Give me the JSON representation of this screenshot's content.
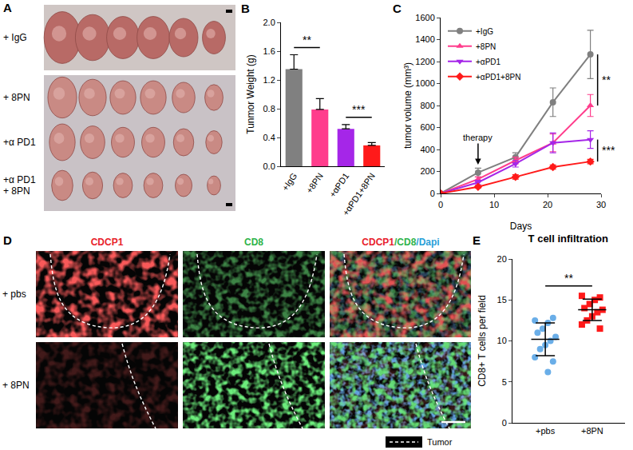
{
  "panels": {
    "A": {
      "label": "A",
      "rows": [
        {
          "label_lines": [
            "+ IgG"
          ]
        },
        {
          "label_lines": [
            "+ 8PN"
          ]
        },
        {
          "label_lines": [
            "+α PD1"
          ]
        },
        {
          "label_lines": [
            "+α PD1",
            "+ 8PN"
          ]
        }
      ]
    },
    "D": {
      "label": "D",
      "columns": [
        {
          "parts": [
            {
              "text": "CDCP1",
              "color": "#e8212b"
            }
          ]
        },
        {
          "parts": [
            {
              "text": "CD8",
              "color": "#2fb34a"
            }
          ]
        },
        {
          "parts": [
            {
              "text": "CDCP1",
              "color": "#e8212b"
            },
            {
              "text": "/CD8",
              "color": "#2fb34a"
            },
            {
              "text": "/Dapi",
              "color": "#2a9fd8"
            }
          ]
        }
      ],
      "rows": [
        {
          "label": "+ pbs"
        },
        {
          "label": "+ 8PN"
        }
      ],
      "legend": "Tumor"
    }
  },
  "chart_data": [
    {
      "panel_label": "B",
      "type": "bar",
      "categories": [
        "+IgG",
        "+8PN",
        "+αPD1",
        "+αPD1+8PN"
      ],
      "values": [
        1.35,
        0.79,
        0.52,
        0.29
      ],
      "errors": [
        0.2,
        0.15,
        0.06,
        0.04
      ],
      "colors": [
        "#808080",
        "#ff3d8c",
        "#a526e8",
        "#ff1a1a"
      ],
      "ylabel": "Tunmor Weight (g)",
      "ylim": [
        0,
        2.0
      ],
      "yticks": [
        {
          "value": 0,
          "label": "0.0"
        },
        {
          "value": 0.4,
          "label": "0.4"
        },
        {
          "value": 0.8,
          "label": "0.8"
        },
        {
          "value": 1.2,
          "label": "1.2"
        },
        {
          "value": 1.6,
          "label": "1.6"
        },
        {
          "value": 2.0,
          "label": "2.0"
        }
      ],
      "grid": false,
      "annotations": [
        {
          "text": "**",
          "categories": [
            "+IgG",
            "+8PN"
          ]
        },
        {
          "text": "***",
          "categories": [
            "+αPD1",
            "+αPD1+8PN"
          ]
        }
      ]
    },
    {
      "panel_label": "C",
      "type": "line",
      "x": [
        0,
        7,
        14,
        21,
        28
      ],
      "xlim": [
        0,
        30
      ],
      "xticks": [
        0,
        10,
        20,
        30
      ],
      "ylim": [
        0,
        1600
      ],
      "yticks": [
        0,
        200,
        400,
        600,
        800,
        1000,
        1200,
        1400,
        1600
      ],
      "xlabel": "Days",
      "ylabel": "tumor volume (mm³)",
      "legend": "upper left",
      "grid": false,
      "series": [
        {
          "name": "+IgG",
          "color": "#808080",
          "marker": "circle",
          "values": [
            0,
            190,
            330,
            830,
            1265
          ],
          "errors": [
            0,
            40,
            40,
            130,
            220
          ]
        },
        {
          "name": "+8PN",
          "color": "#ff3d8c",
          "marker": "triangle-up",
          "values": [
            0,
            130,
            300,
            460,
            800
          ],
          "errors": [
            0,
            20,
            30,
            80,
            100
          ]
        },
        {
          "name": "+αPD1",
          "color": "#a526e8",
          "marker": "triangle-down",
          "values": [
            0,
            100,
            270,
            460,
            490
          ],
          "errors": [
            0,
            20,
            30,
            90,
            80
          ]
        },
        {
          "name": "+αPD1+8PN",
          "color": "#ff1a1a",
          "marker": "diamond",
          "values": [
            0,
            60,
            150,
            240,
            290
          ],
          "errors": [
            0,
            10,
            20,
            20,
            20
          ]
        }
      ],
      "annotations": [
        {
          "text": "therapy",
          "x": 7
        }
      ],
      "significance": [
        {
          "text": "**",
          "series": [
            "+IgG",
            "+8PN"
          ]
        },
        {
          "text": "***",
          "series": [
            "+αPD1",
            "+αPD1+8PN"
          ]
        }
      ]
    },
    {
      "panel_label": "E",
      "type": "scatter",
      "title": "T cell infiltration",
      "ylabel": "CD8+ T cells per field",
      "ylim": [
        0,
        20
      ],
      "yticks": [
        0,
        5,
        10,
        15,
        20
      ],
      "grid": false,
      "series": [
        {
          "name": "+pbs",
          "color": "#6aaee8",
          "marker": "circle",
          "values": [
            12.5,
            12.8,
            12.2,
            11.5,
            11,
            10.5,
            10,
            9.5,
            9,
            8,
            7.5,
            6.2
          ],
          "mean": 10.2,
          "error": 2.0
        },
        {
          "name": "+8PN",
          "color": "#ff1a1a",
          "marker": "square",
          "values": [
            15.5,
            15.3,
            15,
            14.5,
            14,
            13.8,
            13.5,
            13,
            12.5,
            12,
            11.5
          ],
          "mean": 13.8,
          "error": 1.3
        }
      ],
      "annotations": [
        {
          "text": "**",
          "categories": [
            "+pbs",
            "+8PN"
          ]
        }
      ]
    }
  ]
}
